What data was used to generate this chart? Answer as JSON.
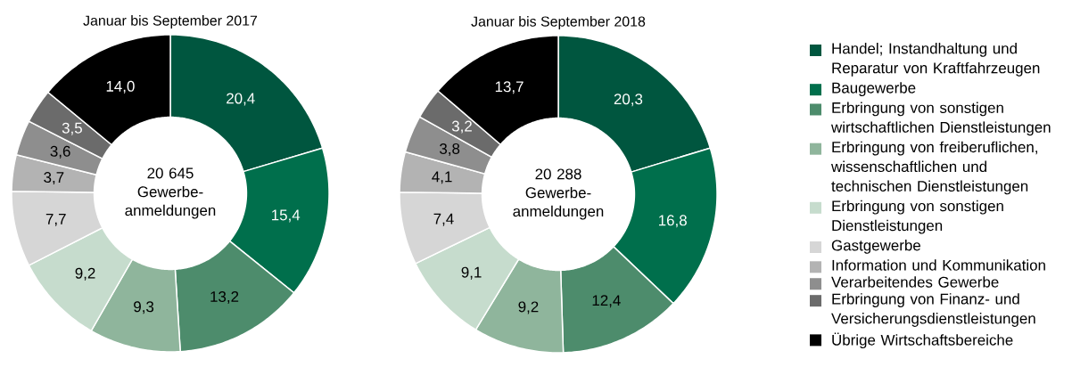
{
  "chart_data": [
    {
      "type": "donut",
      "title": "Januar bis September 2017",
      "categories": [
        null,
        null,
        null,
        null,
        null,
        null,
        null,
        null,
        null,
        null
      ],
      "values": [
        20.4,
        15.4,
        13.2,
        9.3,
        9.2,
        7.7,
        3.7,
        3.6,
        3.5,
        14.0
      ],
      "value_labels": [
        "20,4",
        "15,4",
        "13,2",
        "9,3",
        "9,2",
        "7,7",
        "3,7",
        "3,6",
        "3,5",
        "14,0"
      ],
      "colors": [
        "#00563f",
        "#006f4c",
        "#4d8c6c",
        "#8fb59c",
        "#c6dccd",
        "#d6d6d6",
        "#b3b3b3",
        "#8e8e8e",
        "#6b6b6b",
        "#000000"
      ],
      "annotations": [
        "20 645 Gewerbe-anmeldungen"
      ],
      "legend": false
    },
    {
      "type": "donut",
      "title": "Januar bis September 2018",
      "categories": [
        "Handel; Instandhaltung und Reparatur von Kraftfahrzeugen",
        "Baugewerbe",
        "Erbringung von sonstigen wirtschaftlichen Dienstleistungen",
        "Erbringung von freiberuflichen, wissenschaftlichen und technischen Dienstleistungen",
        "Erbringung von sonstigen Dienstleistungen",
        "Gastgewerbe",
        "Information und Kommunikation",
        "Verarbeitendes Gewerbe",
        "Erbringung von Finanz- und Versicherungsdienstleistungen",
        "Übrige Wirtschaftsbereiche"
      ],
      "values": [
        20.3,
        16.8,
        12.4,
        9.2,
        9.1,
        7.4,
        4.1,
        3.8,
        3.2,
        13.7
      ],
      "value_labels": [
        "20,3",
        "16,8",
        "12,4",
        "9,2",
        "9,1",
        "7,4",
        "4,1",
        "3,8",
        "3,2",
        "13,7"
      ],
      "colors": [
        "#00563f",
        "#006f4c",
        "#4d8c6c",
        "#8fb59c",
        "#c6dccd",
        "#d6d6d6",
        "#b3b3b3",
        "#8e8e8e",
        "#6b6b6b",
        "#000000"
      ],
      "annotations": [
        "20 288 Gewerbe-anmeldungen"
      ],
      "legend": "right"
    }
  ]
}
